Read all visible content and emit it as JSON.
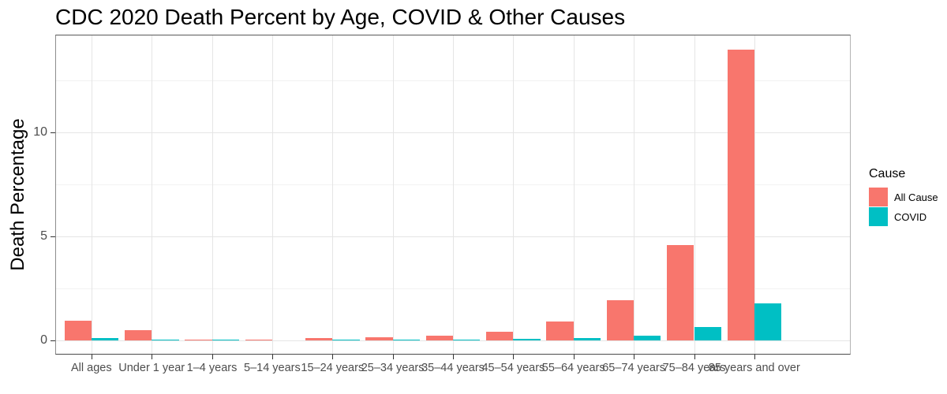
{
  "chart_data": {
    "type": "bar",
    "title": "CDC 2020 Death Percent by Age, COVID & Other Causes",
    "xlabel": "",
    "ylabel": "Death Percentage",
    "categories": [
      "All ages",
      "Under 1 year",
      "1–4 years",
      "5–14 years",
      "15–24 years",
      "25–34 years",
      "35–44 years",
      "45–54 years",
      "55–64 years",
      "65–74 years",
      "75–84 years",
      "85 years and over"
    ],
    "series": [
      {
        "name": "All Cause",
        "color": "#F8766D",
        "values": [
          0.95,
          0.48,
          0.02,
          0.01,
          0.08,
          0.15,
          0.21,
          0.4,
          0.9,
          1.9,
          4.57,
          13.97
        ]
      },
      {
        "name": "COVID",
        "color": "#00BFC4",
        "values": [
          0.1,
          0.002,
          0.002,
          0.001,
          0.005,
          0.01,
          0.02,
          0.05,
          0.09,
          0.2,
          0.61,
          1.75
        ]
      }
    ],
    "legend": {
      "title": "Cause",
      "position": "right"
    },
    "y_axis": {
      "tick_values": [
        0,
        5,
        10
      ],
      "tick_labels": [
        "0",
        "5",
        "10"
      ],
      "minor_tick_values": [
        2.5,
        7.5,
        12.5
      ],
      "range": [
        -0.7,
        14.7
      ]
    },
    "x_axis": {
      "tick_labels_overlap": true
    },
    "grid": {
      "shown": true,
      "major_color": "#e5e5e5",
      "minor_color": "#f2f2f2"
    },
    "bar_layout": {
      "dodged": true,
      "category_expand_units": 0.6,
      "bar_width_units": 0.45
    }
  },
  "colors": {
    "background": "#ffffff",
    "axis_text": "#4d4d4d",
    "tick_mark": "#333333",
    "panel_border": "#8c8c8c",
    "title_text": "#000000"
  }
}
